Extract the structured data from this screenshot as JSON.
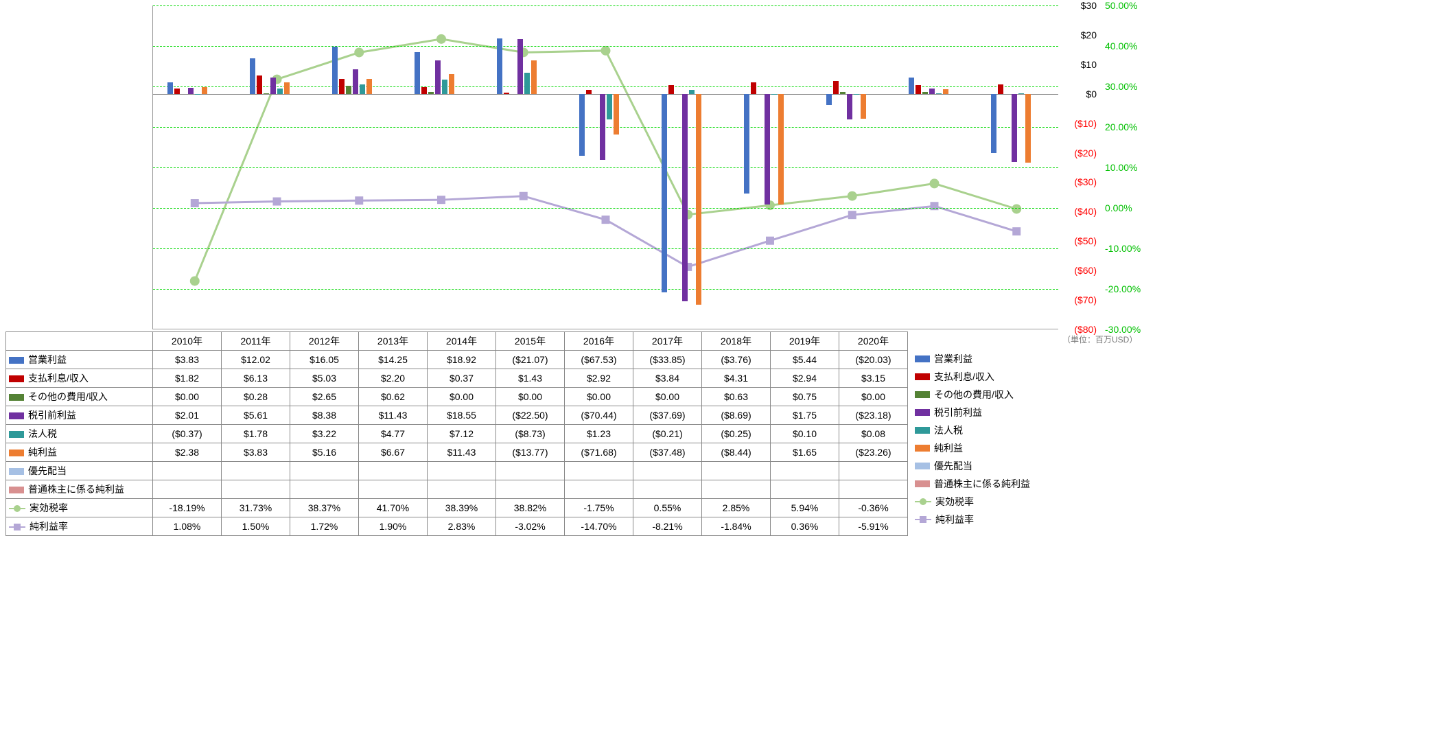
{
  "years": [
    "2010年",
    "2011年",
    "2012年",
    "2013年",
    "2014年",
    "2015年",
    "2016年",
    "2017年",
    "2018年",
    "2019年",
    "2020年"
  ],
  "unit_note": "（単位：百万USD）",
  "left_axis": {
    "min": -80,
    "max": 30,
    "step": 10,
    "currency": true
  },
  "right_axis": {
    "min": -30,
    "max": 50,
    "step": 10,
    "percent": true
  },
  "grid_percent_lines": [
    -20,
    -10,
    0,
    10,
    20,
    30,
    40,
    50
  ],
  "colors": {
    "営業利益": "#4472c4",
    "支払利息/収入": "#c00000",
    "その他の費用/収入": "#548235",
    "税引前利益": "#7030a0",
    "法人税": "#2e9999",
    "純利益": "#ed7d31",
    "優先配当": "#a6c0e4",
    "普通株主に係る純利益": "#d89090",
    "実効税率": "#a9d18e",
    "純利益率": "#b4a7d6"
  },
  "marker_shape": {
    "実効税率": "circle",
    "純利益率": "square"
  },
  "bar_series": [
    "営業利益",
    "支払利息/収入",
    "その他の費用/収入",
    "税引前利益",
    "法人税",
    "純利益",
    "優先配当",
    "普通株主に係る純利益"
  ],
  "line_series": [
    "実効税率",
    "純利益率"
  ],
  "series_order": [
    "営業利益",
    "支払利息/収入",
    "その他の費用/収入",
    "税引前利益",
    "法人税",
    "純利益",
    "優先配当",
    "普通株主に係る純利益",
    "実効税率",
    "純利益率"
  ],
  "data": {
    "営業利益": [
      3.83,
      12.02,
      16.05,
      14.25,
      18.92,
      -21.07,
      -67.53,
      -33.85,
      -3.76,
      5.44,
      -20.03
    ],
    "支払利息/収入": [
      1.82,
      6.13,
      5.03,
      2.2,
      0.37,
      1.43,
      2.92,
      3.84,
      4.31,
      2.94,
      3.15
    ],
    "その他の費用/収入": [
      0.0,
      0.28,
      2.65,
      0.62,
      0.0,
      0.0,
      0.0,
      0.0,
      0.63,
      0.75,
      0.0
    ],
    "税引前利益": [
      2.01,
      5.61,
      8.38,
      11.43,
      18.55,
      -22.5,
      -70.44,
      -37.69,
      -8.69,
      1.75,
      -23.18
    ],
    "法人税": [
      -0.37,
      1.78,
      3.22,
      4.77,
      7.12,
      -8.73,
      1.23,
      -0.21,
      -0.25,
      0.1,
      0.08
    ],
    "純利益": [
      2.38,
      3.83,
      5.16,
      6.67,
      11.43,
      -13.77,
      -71.68,
      -37.48,
      -8.44,
      1.65,
      -23.26
    ],
    "優先配当": [
      null,
      null,
      null,
      null,
      null,
      null,
      null,
      null,
      null,
      null,
      null
    ],
    "普通株主に係る純利益": [
      null,
      null,
      null,
      null,
      null,
      null,
      null,
      null,
      null,
      null,
      null
    ],
    "実効税率": [
      -18.19,
      31.73,
      38.37,
      41.7,
      38.39,
      38.82,
      -1.75,
      0.55,
      2.85,
      5.94,
      -0.36
    ],
    "純利益率": [
      1.08,
      1.5,
      1.72,
      1.9,
      2.83,
      -3.02,
      -14.7,
      -8.21,
      -1.84,
      0.36,
      -5.91
    ]
  }
}
